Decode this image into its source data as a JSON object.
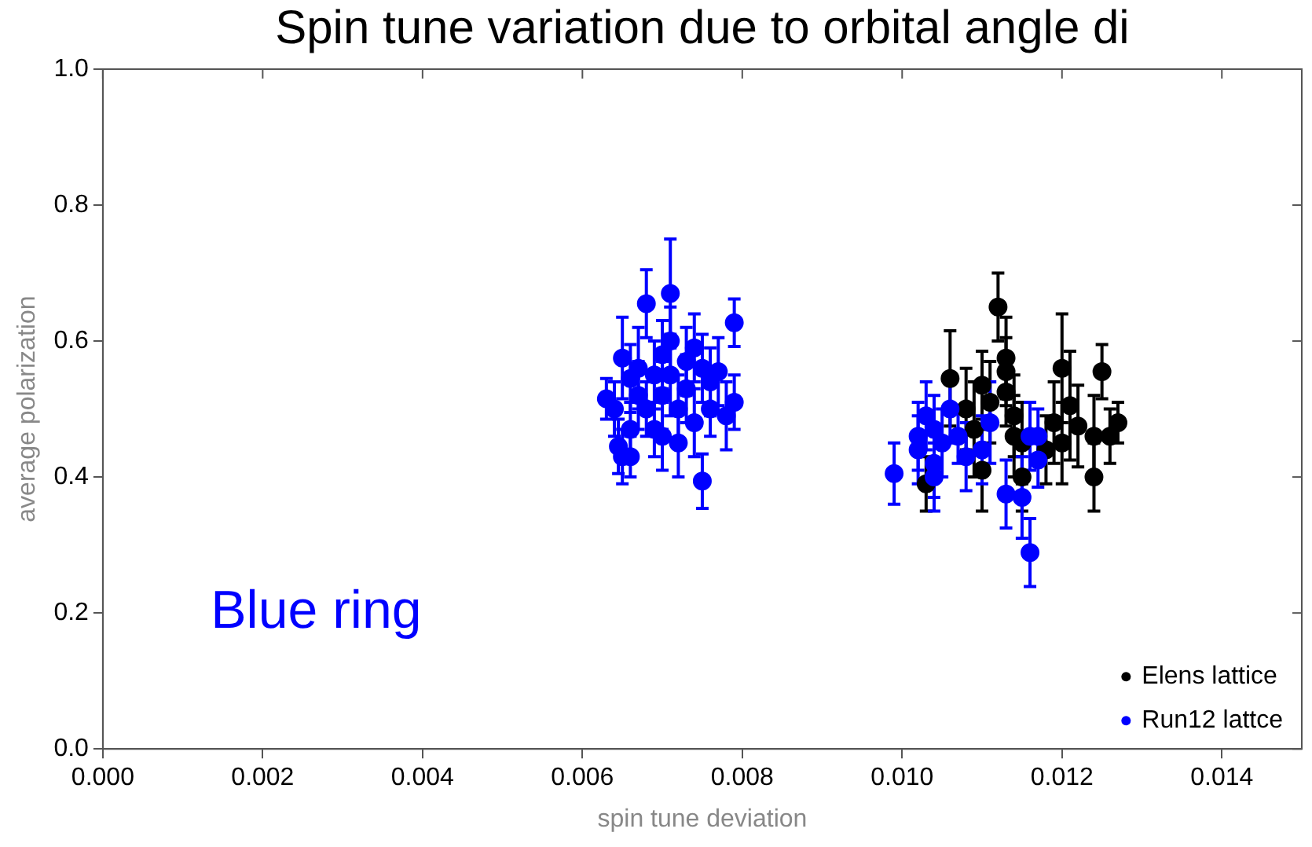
{
  "chart_data": {
    "type": "scatter",
    "title": "Spin tune variation due to orbital angle di",
    "xlabel": "spin tune deviation",
    "ylabel": "average polarization",
    "annotations": [
      "Blue ring"
    ],
    "xlim": [
      0,
      0.015
    ],
    "ylim": [
      0,
      1
    ],
    "xticks": [
      {
        "value": 0,
        "label": "0.000"
      },
      {
        "value": 0.002,
        "label": "0.002"
      },
      {
        "value": 0.004,
        "label": "0.004"
      },
      {
        "value": 0.006,
        "label": "0.006"
      },
      {
        "value": 0.008,
        "label": "0.008"
      },
      {
        "value": 0.01,
        "label": "0.010"
      },
      {
        "value": 0.012,
        "label": "0.012"
      },
      {
        "value": 0.014,
        "label": "0.014"
      }
    ],
    "yticks": [
      {
        "value": 0,
        "label": "0.0"
      },
      {
        "value": 0.2,
        "label": "0.2"
      },
      {
        "value": 0.4,
        "label": "0.4"
      },
      {
        "value": 0.6,
        "label": "0.6"
      },
      {
        "value": 0.8,
        "label": "0.8"
      },
      {
        "value": 1,
        "label": "1.0"
      }
    ],
    "grid": false,
    "legend": "bottom right",
    "marker": "circle",
    "series": [
      {
        "name": "Elens lattice",
        "color": "#000000",
        "x": [
          0.0103,
          0.0106,
          0.0107,
          0.0108,
          0.0109,
          0.011,
          0.011,
          0.0111,
          0.0112,
          0.0113,
          0.0113,
          0.0113,
          0.0114,
          0.0114,
          0.0115,
          0.0115,
          0.0117,
          0.0118,
          0.0119,
          0.012,
          0.012,
          0.0121,
          0.0122,
          0.0124,
          0.0124,
          0.0125,
          0.0126,
          0.0127
        ],
        "values": [
          0.39,
          0.545,
          null,
          0.5,
          0.47,
          0.535,
          0.41,
          0.51,
          0.65,
          0.575,
          0.555,
          0.525,
          0.49,
          0.46,
          0.45,
          0.4,
          null,
          0.44,
          0.48,
          0.56,
          0.45,
          0.505,
          0.475,
          0.4,
          0.46,
          0.555,
          0.46,
          0.48
        ],
        "errors": [
          0.04,
          0.07,
          null,
          0.06,
          0.07,
          0.05,
          0.06,
          0.06,
          0.05,
          0.06,
          0.05,
          0.05,
          0.06,
          0.06,
          0.06,
          0.05,
          null,
          0.05,
          0.06,
          0.08,
          0.06,
          0.08,
          0.06,
          0.05,
          0.06,
          0.04,
          0.04,
          0.03
        ]
      },
      {
        "name": "Run12 lattce",
        "color": "#0000ff",
        "x": [
          0.0063,
          0.0064,
          0.00645,
          0.0065,
          0.0065,
          0.0066,
          0.0066,
          0.0066,
          0.0067,
          0.0067,
          0.0068,
          0.0068,
          0.0069,
          0.0069,
          0.007,
          0.007,
          0.007,
          0.0071,
          0.0071,
          0.0071,
          0.0072,
          0.0072,
          0.0073,
          0.0073,
          0.0074,
          0.0074,
          0.0075,
          0.0075,
          0.0076,
          0.0076,
          0.0077,
          0.0078,
          0.0079,
          0.0079,
          0.0099,
          0.0102,
          0.0102,
          0.0103,
          0.0104,
          0.0104,
          0.0105,
          0.0106,
          0.0107,
          0.0108,
          0.011,
          0.0111,
          0.0113,
          0.0115,
          0.0116,
          0.0116,
          0.0117,
          0.0117,
          0.0104
        ],
        "values": [
          0.515,
          0.5,
          0.445,
          0.43,
          0.575,
          0.545,
          0.47,
          0.43,
          0.56,
          0.52,
          0.5,
          0.655,
          0.47,
          0.55,
          0.58,
          0.52,
          0.46,
          0.67,
          0.6,
          0.55,
          0.5,
          0.45,
          0.57,
          0.53,
          0.48,
          0.59,
          0.394,
          0.56,
          0.54,
          0.5,
          0.555,
          0.49,
          0.627,
          0.51,
          0.405,
          0.46,
          0.44,
          0.49,
          0.47,
          0.42,
          0.45,
          0.5,
          0.46,
          0.43,
          0.44,
          0.48,
          0.375,
          0.37,
          0.289,
          0.46,
          0.46,
          0.425,
          0.4
        ],
        "errors": [
          0.03,
          0.04,
          0.04,
          0.04,
          0.06,
          0.05,
          0.04,
          0.03,
          0.06,
          0.05,
          0.04,
          0.05,
          0.04,
          0.05,
          0.05,
          0.05,
          0.05,
          0.08,
          0.05,
          0.06,
          0.05,
          0.05,
          0.05,
          0.05,
          0.05,
          0.05,
          0.04,
          0.05,
          0.05,
          0.04,
          0.05,
          0.05,
          0.035,
          0.04,
          0.045,
          0.05,
          0.05,
          0.05,
          0.05,
          0.05,
          0.05,
          0.05,
          0.04,
          0.05,
          0.05,
          0.06,
          0.05,
          0.06,
          0.05,
          0.05,
          0.04,
          0.04,
          0.05
        ]
      }
    ]
  }
}
